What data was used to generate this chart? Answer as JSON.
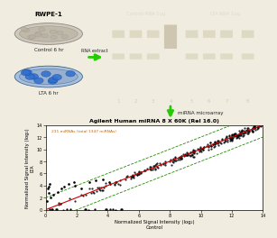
{
  "title_top": "RWPE-1",
  "label_control": "Control 6 hr",
  "label_lta": "LTA 6 hr",
  "arrow_label": "RNA extract",
  "mirna_arrow_label": "miRNA microarray",
  "gel_title_control": "Control RNA 1ug",
  "gel_title_lta": "LTA RNA 1ug",
  "gel_lane_numbers": [
    "1",
    "2",
    "3",
    "4",
    "5",
    "6",
    "7",
    "8"
  ],
  "scatter_title": "Agilent Human miRNA 8 X 60K (Rel 16.0)",
  "scatter_annotation": "231 miRNAs (total 1347 miRNAs)",
  "scatter_xlabel": "Normalized Signal Intensity (log₂)\nControl",
  "scatter_ylabel": "Normalized Signal Intensity (log₂)\nLTA",
  "scatter_xlim": [
    0,
    14
  ],
  "scatter_ylim": [
    0,
    14
  ],
  "scatter_xticks": [
    0,
    2,
    4,
    6,
    8,
    10,
    12,
    14
  ],
  "scatter_yticks": [
    0,
    2,
    4,
    6,
    8,
    10,
    12,
    14
  ],
  "bg_color": "#f0ece0",
  "scatter_bg": "#ffffff",
  "gel_bg": "#111111",
  "gel_band_color": "#ddd8c0",
  "arrow_color": "#22cc00",
  "scatter_line_color": "#cc0000",
  "scatter_band_color": "#228800"
}
